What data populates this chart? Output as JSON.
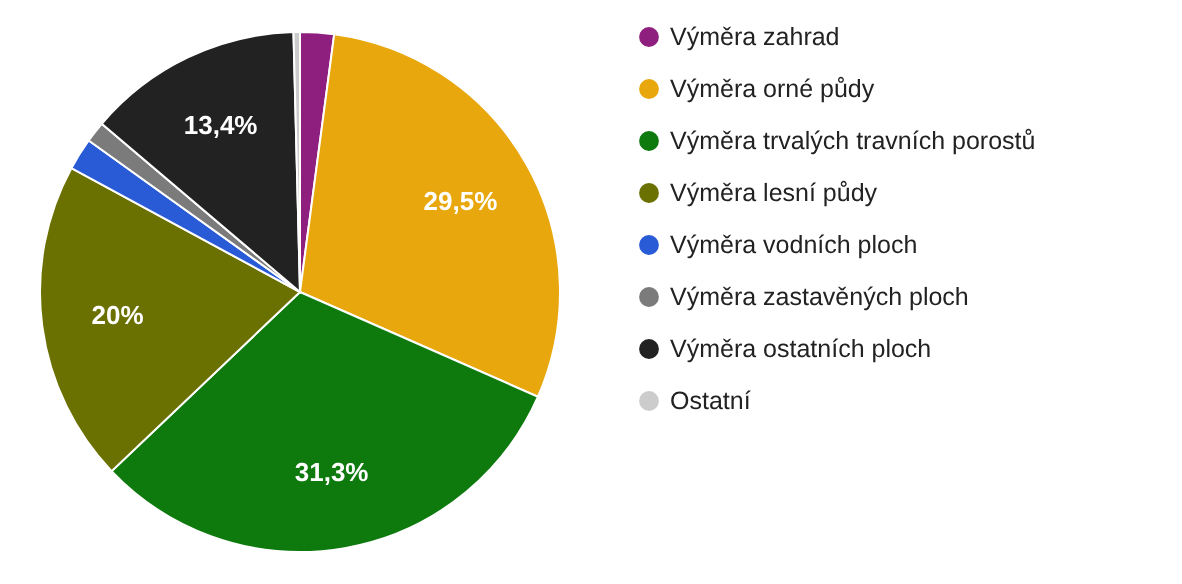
{
  "chart_data": {
    "type": "pie",
    "categories": [
      "Výměra zahrad",
      "Výměra orné půdy",
      "Výměra trvalých travních porostů",
      "Výměra lesní půdy",
      "Výměra vodních ploch",
      "Výměra zastavěných ploch",
      "Výměra ostatních ploch",
      "Ostatní"
    ],
    "values": [
      2.1,
      29.5,
      31.3,
      20,
      2,
      1.3,
      13.4,
      0.4
    ],
    "value_labels": [
      null,
      "29,5%",
      "31,3%",
      "20%",
      null,
      null,
      "13,4%",
      null
    ],
    "colors": [
      "#8e1f7e",
      "#e8a70c",
      "#0e7a0e",
      "#6b7100",
      "#2a5bd7",
      "#7b7b7b",
      "#222222",
      "#cccccc"
    ],
    "legend": "right"
  }
}
